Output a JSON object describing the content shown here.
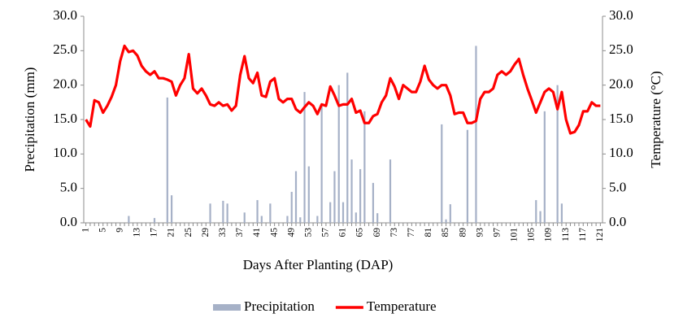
{
  "chart_data": {
    "type": "bar-line",
    "x_label": "Days After Planting (DAP)",
    "y_label": "Precipitation (mm)",
    "y2_label": "Temperature (°C)",
    "categories": [
      1,
      null,
      null,
      null,
      5,
      null,
      null,
      null,
      9,
      null,
      null,
      null,
      13,
      null,
      null,
      null,
      17,
      null,
      null,
      null,
      21,
      null,
      null,
      null,
      25,
      null,
      null,
      null,
      29,
      null,
      null,
      null,
      33,
      null,
      null,
      null,
      37,
      null,
      null,
      null,
      41,
      null,
      null,
      null,
      45,
      null,
      null,
      null,
      49,
      null,
      null,
      null,
      53,
      null,
      null,
      null,
      57,
      null,
      null,
      null,
      61,
      null,
      null,
      null,
      65,
      null,
      null,
      null,
      69,
      null,
      null,
      null,
      73,
      null,
      null,
      null,
      77,
      null,
      null,
      null,
      81,
      null,
      null,
      null,
      85,
      null,
      null,
      null,
      89,
      null,
      null,
      null,
      93,
      null,
      null,
      null,
      97,
      null,
      null,
      null,
      101,
      null,
      null,
      null,
      105,
      null,
      null,
      null,
      109,
      null,
      null,
      null,
      113,
      null,
      null,
      null,
      117,
      null,
      null,
      null,
      121
    ],
    "series": [
      {
        "name": "Precipitation",
        "type": "bar",
        "color": "#a6b1c7",
        "values": [
          0,
          0,
          0,
          0,
          0,
          0,
          0,
          0,
          0,
          0,
          1.0,
          0,
          0,
          0,
          0,
          0,
          0.7,
          0,
          0,
          18.2,
          4.0,
          0,
          0,
          0,
          0,
          0,
          0,
          0,
          0,
          2.8,
          0,
          0,
          3.2,
          2.8,
          0,
          0,
          0,
          1.5,
          0,
          0,
          3.3,
          1.0,
          0,
          2.8,
          0,
          0,
          0,
          1.0,
          4.5,
          7.5,
          0.8,
          19.0,
          8.2,
          0,
          1.0,
          17.0,
          0,
          3.0,
          7.5,
          20.0,
          3.0,
          21.8,
          9.2,
          1.5,
          7.8,
          16.2,
          0,
          5.8,
          1.4,
          0,
          0,
          9.2,
          0,
          0,
          0,
          0,
          0,
          0,
          0,
          0,
          0,
          0,
          0,
          14.3,
          0.5,
          2.7,
          0,
          0,
          0,
          13.5,
          0,
          25.7,
          0,
          0,
          0,
          0,
          0,
          0,
          0,
          0,
          0,
          0,
          0,
          0,
          0,
          3.3,
          1.7,
          16.2,
          0,
          0,
          20.0,
          2.8,
          0,
          0,
          0,
          0,
          0,
          0,
          0,
          0,
          0
        ]
      },
      {
        "name": "Temperature",
        "type": "line",
        "axis": "y2",
        "color": "#ff0000",
        "values": [
          15,
          14,
          17.8,
          17.5,
          16,
          17,
          18.3,
          20,
          23.5,
          25.7,
          24.8,
          25,
          24.3,
          22.8,
          22,
          21.5,
          22,
          21,
          21,
          20.8,
          20.5,
          18.5,
          20,
          21,
          24.5,
          19.5,
          18.8,
          19.5,
          18.5,
          17.2,
          17,
          17.5,
          17,
          17.2,
          16.3,
          17,
          21.5,
          24.2,
          21,
          20.3,
          21.8,
          18.5,
          18.3,
          20.5,
          21,
          18,
          17.5,
          18,
          18,
          16.5,
          16,
          16.8,
          17.5,
          17,
          15.8,
          17.2,
          17,
          19.8,
          18.5,
          17,
          17.2,
          17.2,
          18,
          16,
          16.3,
          14.5,
          14.5,
          15.5,
          15.8,
          17.5,
          18.5,
          21,
          19.8,
          18,
          20,
          19.5,
          19,
          19,
          20.5,
          22.8,
          20.8,
          20,
          19.5,
          20,
          20,
          18.5,
          15.8,
          16,
          16,
          14.5,
          14.5,
          14.8,
          18,
          19,
          19,
          19.5,
          21.5,
          22,
          21.5,
          22,
          23,
          23.8,
          21.5,
          19.5,
          17.8,
          16,
          17.5,
          19,
          19.5,
          19,
          16.5,
          19,
          15,
          13,
          13.2,
          14.2,
          16.2,
          16.2,
          17.5,
          17,
          17
        ]
      }
    ],
    "ylim": [
      0,
      30
    ],
    "yticks": [
      {
        "value": 0,
        "label": "0.0"
      },
      {
        "value": 5,
        "label": "5.0"
      },
      {
        "value": 10,
        "label": "10.0"
      },
      {
        "value": 15,
        "label": "15.0"
      },
      {
        "value": 20,
        "label": "20.0"
      },
      {
        "value": 25,
        "label": "25.0"
      },
      {
        "value": 30,
        "label": "30.0"
      }
    ],
    "y2lim": [
      0,
      30
    ],
    "y2ticks": [
      {
        "value": 0,
        "label": "0.0"
      },
      {
        "value": 5,
        "label": "5.0"
      },
      {
        "value": 10,
        "label": "10.0"
      },
      {
        "value": 15,
        "label": "15.0"
      },
      {
        "value": 20,
        "label": "20.0"
      },
      {
        "value": 25,
        "label": "25.0"
      },
      {
        "value": 30,
        "label": "30.0"
      }
    ],
    "legend": "bottom",
    "grid": false
  }
}
